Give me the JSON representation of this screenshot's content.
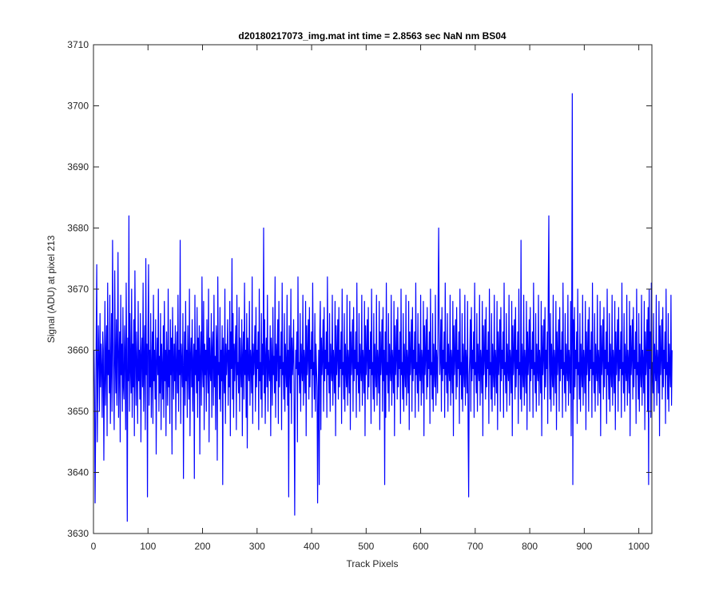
{
  "chart_data": {
    "type": "line",
    "title": "d20180217073_img.mat int time = 2.8563 sec  NaN nm BS04",
    "xlabel": "Track Pixels",
    "ylabel": "Signal (ADU) at pixel 213",
    "xlim": [
      0,
      1024
    ],
    "ylim": [
      3630,
      3710
    ],
    "xticks": [
      "0",
      "100",
      "200",
      "300",
      "400",
      "500",
      "600",
      "700",
      "800",
      "900",
      "1000"
    ],
    "yticks": [
      "3630",
      "3640",
      "3650",
      "3660",
      "3670",
      "3680",
      "3690",
      "3700",
      "3710"
    ],
    "grid": false,
    "line_color": "#0000ff",
    "series": [
      {
        "x_start": 1,
        "x_step": 1,
        "values": [
          3660,
          3652,
          3635,
          3648,
          3662,
          3674,
          3645,
          3655,
          3664,
          3658,
          3650,
          3666,
          3654,
          3661,
          3657,
          3649,
          3663,
          3660,
          3642,
          3655,
          3668,
          3651,
          3659,
          3664,
          3646,
          3671,
          3656,
          3660,
          3653,
          3669,
          3648,
          3657,
          3666,
          3650,
          3678,
          3662,
          3655,
          3647,
          3673,
          3659,
          3653,
          3665,
          3651,
          3660,
          3676,
          3649,
          3658,
          3663,
          3645,
          3669,
          3656,
          3661,
          3650,
          3667,
          3654,
          3652,
          3664,
          3659,
          3647,
          3671,
          3658,
          3632,
          3662,
          3655,
          3682,
          3650,
          3666,
          3657,
          3653,
          3670,
          3649,
          3661,
          3654,
          3665,
          3646,
          3673,
          3659,
          3651,
          3663,
          3657,
          3648,
          3668,
          3655,
          3660,
          3652,
          3666,
          3645,
          3659,
          3662,
          3654,
          3671,
          3650,
          3658,
          3664,
          3647,
          3675,
          3656,
          3661,
          3636,
          3663,
          3674,
          3651,
          3660,
          3654,
          3666,
          3649,
          3657,
          3663,
          3648,
          3669,
          3655,
          3660,
          3652,
          3665,
          3643,
          3658,
          3662,
          3656,
          3670,
          3650,
          3659,
          3653,
          3666,
          3647,
          3661,
          3657,
          3652,
          3664,
          3649,
          3668,
          3655,
          3660,
          3646,
          3663,
          3657,
          3651,
          3670,
          3654,
          3660,
          3648,
          3665,
          3656,
          3662,
          3643,
          3667,
          3659,
          3652,
          3661,
          3655,
          3664,
          3647,
          3658,
          3663,
          3653,
          3669,
          3650,
          3660,
          3656,
          3678,
          3648,
          3661,
          3658,
          3654,
          3666,
          3639,
          3657,
          3663,
          3651,
          3668,
          3655,
          3660,
          3649,
          3664,
          3657,
          3652,
          3670,
          3646,
          3659,
          3662,
          3654,
          3665,
          3650,
          3658,
          3661,
          3639,
          3669,
          3656,
          3660,
          3653,
          3667,
          3649,
          3662,
          3655,
          3664,
          3643,
          3659,
          3663,
          3651,
          3672,
          3657,
          3654,
          3668,
          3647,
          3661,
          3656,
          3660,
          3650,
          3665,
          3658,
          3653,
          3670,
          3645,
          3662,
          3657,
          3655,
          3666,
          3649,
          3660,
          3663,
          3651,
          3669,
          3654,
          3659,
          3647,
          3664,
          3661,
          3642,
          3672,
          3656,
          3658,
          3652,
          3667,
          3650,
          3660,
          3655,
          3664,
          3638,
          3662,
          3657,
          3653,
          3670,
          3648,
          3661,
          3656,
          3659,
          3665,
          3651,
          3660,
          3654,
          3668,
          3646,
          3663,
          3657,
          3675,
          3652,
          3666,
          3649,
          3661,
          3655,
          3660,
          3664,
          3647,
          3669,
          3656,
          3658,
          3653,
          3667,
          3650,
          3662,
          3657,
          3654,
          3665,
          3646,
          3659,
          3663,
          3652,
          3671,
          3656,
          3660,
          3649,
          3666,
          3644,
          3662,
          3657,
          3655,
          3668,
          3651,
          3660,
          3658,
          3653,
          3672,
          3648,
          3661,
          3656,
          3659,
          3664,
          3650,
          3667,
          3654,
          3660,
          3657,
          3663,
          3647,
          3670,
          3655,
          3658,
          3652,
          3666,
          3649,
          3661,
          3656,
          3680,
          3653,
          3665,
          3648,
          3659,
          3662,
          3654,
          3669,
          3650,
          3660,
          3657,
          3655,
          3664,
          3646,
          3662,
          3658,
          3651,
          3667,
          3656,
          3659,
          3653,
          3672,
          3649,
          3661,
          3655,
          3660,
          3665,
          3648,
          3668,
          3654,
          3659,
          3657,
          3663,
          3647,
          3671,
          3656,
          3658,
          3652,
          3666,
          3650,
          3661,
          3657,
          3654,
          3669,
          3651,
          3660,
          3636,
          3664,
          3658,
          3653,
          3670,
          3648,
          3662,
          3656,
          3659,
          3665,
          3650,
          3667,
          3655,
          3660,
          3657,
          3663,
          3645,
          3672,
          3656,
          3658,
          3653,
          3666,
          3650,
          3661,
          3657,
          3655,
          3669,
          3651,
          3660,
          3658,
          3653,
          3668,
          3646,
          3664,
          3656,
          3659,
          3665,
          3652,
          3667,
          3654,
          3660,
          3657,
          3663,
          3649,
          3671,
          3656,
          3658,
          3652,
          3666,
          3650,
          3661,
          3657,
          3654,
          3670,
          3651,
          3660,
          3638,
          3663,
          3668,
          3647,
          3662,
          3656,
          3659,
          3665,
          3650,
          3667,
          3655,
          3660,
          3657,
          3663,
          3649,
          3672,
          3656,
          3658,
          3653,
          3666,
          3650,
          3661,
          3657,
          3655,
          3669,
          3651,
          3660,
          3658,
          3653,
          3668,
          3646,
          3664,
          3656,
          3659,
          3665,
          3652,
          3667,
          3654,
          3660,
          3657,
          3663,
          3648,
          3670,
          3656,
          3658,
          3652,
          3666,
          3650,
          3661,
          3657,
          3654,
          3669,
          3651,
          3660,
          3658,
          3653,
          3668,
          3647,
          3663,
          3656,
          3659,
          3665,
          3650,
          3667,
          3655,
          3660,
          3657,
          3663,
          3649,
          3671,
          3656,
          3658,
          3653,
          3666,
          3650,
          3661,
          3657,
          3655,
          3669,
          3651,
          3660,
          3658,
          3653,
          3668,
          3646,
          3664,
          3656,
          3659,
          3665,
          3652,
          3667,
          3654,
          3660,
          3657,
          3663,
          3648,
          3670,
          3656,
          3658,
          3652,
          3666,
          3650,
          3661,
          3657,
          3654,
          3669,
          3651,
          3660,
          3658,
          3653,
          3668,
          3647,
          3663,
          3656,
          3659,
          3665,
          3650,
          3667,
          3655,
          3660,
          3657,
          3663,
          3649,
          3671,
          3656,
          3658,
          3653,
          3666,
          3650,
          3661,
          3657,
          3655,
          3669,
          3651,
          3660,
          3658,
          3653,
          3668,
          3646,
          3664,
          3656,
          3659,
          3665,
          3652,
          3667,
          3654,
          3660,
          3657,
          3663,
          3648,
          3670,
          3656,
          3658,
          3652,
          3666,
          3650,
          3661,
          3657,
          3654,
          3669,
          3651,
          3660,
          3658,
          3653,
          3668,
          3647,
          3663,
          3656,
          3659,
          3665,
          3650,
          3667,
          3655,
          3660,
          3657,
          3663,
          3649,
          3671,
          3656,
          3658,
          3653,
          3666,
          3650,
          3661,
          3657,
          3655,
          3669,
          3651,
          3660,
          3658,
          3653,
          3668,
          3646,
          3664,
          3656,
          3659,
          3665,
          3652,
          3667,
          3654,
          3660,
          3657,
          3663,
          3648,
          3670,
          3656,
          3658,
          3652,
          3666,
          3650,
          3661,
          3657,
          3654,
          3669,
          3651,
          3660,
          3658,
          3653,
          3668,
          3647,
          3663,
          3656,
          3659,
          3665,
          3650,
          3667,
          3655,
          3660,
          3657,
          3663,
          3649,
          3671,
          3656,
          3658,
          3653,
          3666,
          3650,
          3661,
          3657,
          3655,
          3669,
          3651,
          3660,
          3658,
          3653,
          3668,
          3646,
          3664,
          3656,
          3659,
          3665,
          3652,
          3667,
          3654,
          3660,
          3657,
          3663,
          3648,
          3670,
          3656,
          3658,
          3652,
          3666,
          3650,
          3661,
          3657,
          3654,
          3669,
          3651,
          3660,
          3658,
          3653,
          3668,
          3647,
          3663,
          3656,
          3659,
          3665,
          3650,
          3667,
          3655,
          3660,
          3657,
          3663,
          3649,
          3671,
          3656,
          3658,
          3653,
          3666,
          3650,
          3661,
          3657,
          3655,
          3669,
          3651,
          3660,
          3658,
          3653,
          3668,
          3646,
          3664,
          3656,
          3659,
          3665,
          3652,
          3667,
          3654,
          3660,
          3657,
          3663,
          3648,
          3670,
          3656,
          3658,
          3652,
          3666,
          3650,
          3661,
          3657,
          3654,
          3669,
          3651,
          3660,
          3658,
          3653,
          3668,
          3647,
          3663,
          3656,
          3659,
          3665,
          3650,
          3667,
          3655,
          3660,
          3657,
          3663,
          3649,
          3671,
          3656,
          3658,
          3653,
          3666,
          3650,
          3661,
          3657,
          3655,
          3669,
          3651,
          3660,
          3658,
          3653,
          3668,
          3646,
          3664,
          3656,
          3659,
          3665,
          3652,
          3667,
          3654,
          3660,
          3657,
          3663,
          3648,
          3670,
          3656,
          3658,
          3652,
          3666,
          3650,
          3661,
          3657,
          3654,
          3669,
          3651,
          3660,
          3658,
          3653,
          3668,
          3647,
          3663,
          3656,
          3659,
          3665,
          3650,
          3667,
          3655,
          3660,
          3657,
          3663,
          3649,
          3671,
          3656,
          3658,
          3653,
          3666,
          3650,
          3661,
          3657,
          3655,
          3669,
          3651,
          3660,
          3658,
          3653,
          3668,
          3646,
          3664,
          3656,
          3659,
          3665,
          3652,
          3667,
          3654,
          3660,
          3657,
          3663,
          3648,
          3670,
          3656,
          3658,
          3652,
          3666,
          3650,
          3661,
          3657,
          3654,
          3669,
          3651,
          3660,
          3658,
          3653,
          3668,
          3647,
          3663,
          3656,
          3659,
          3665,
          3650,
          3667,
          3655,
          3660,
          3657,
          3663,
          3649,
          3671,
          3656,
          3658,
          3653,
          3666,
          3650,
          3661,
          3657,
          3655,
          3669,
          3651,
          3660,
          3658,
          3653,
          3668,
          3646,
          3664,
          3656,
          3659,
          3665,
          3652,
          3667,
          3654,
          3660,
          3657,
          3663,
          3648,
          3670,
          3656,
          3658,
          3652,
          3666,
          3650,
          3661,
          3657,
          3654,
          3669,
          3651,
          3660,
          3658,
          3653,
          3668,
          3647,
          3663,
          3656,
          3659,
          3665,
          3650,
          3667,
          3655,
          3660,
          3657,
          3663,
          3649,
          3671,
          3656,
          3658,
          3653,
          3666,
          3650,
          3661,
          3657,
          3655,
          3669,
          3651,
          3660,
          3658,
          3653,
          3668,
          3646,
          3664,
          3656,
          3659,
          3665,
          3652,
          3667,
          3654,
          3660,
          3657,
          3663,
          3648,
          3670,
          3656,
          3658,
          3652,
          3666,
          3650,
          3661,
          3657,
          3654,
          3669,
          3651,
          3660,
          3658,
          3653,
          3668,
          3647,
          3663,
          3656,
          3659,
          3665,
          3650,
          3667,
          3655,
          3660,
          3657,
          3663,
          3649,
          3671,
          3656,
          3658,
          3653,
          3666,
          3650,
          3661,
          3657,
          3655,
          3669,
          3651,
          3660,
          3658,
          3653,
          3668,
          3646,
          3664,
          3656,
          3659,
          3665,
          3652,
          3667,
          3654,
          3660,
          3657,
          3663,
          3648,
          3670,
          3656,
          3658,
          3652,
          3666,
          3650,
          3661,
          3657,
          3654,
          3669,
          3651,
          3660,
          3658,
          3653,
          3668,
          3647,
          3663,
          3656,
          3659,
          3665,
          3650,
          3667,
          3655,
          3660,
          3657,
          3663,
          3649,
          3671,
          3656,
          3658,
          3653,
          3666,
          3650,
          3661,
          3657,
          3655,
          3669,
          3651,
          3660,
          3658,
          3653,
          3668,
          3646,
          3664,
          3656,
          3659,
          3665,
          3652,
          3667,
          3654,
          3660,
          3657,
          3663,
          3648,
          3670,
          3656,
          3658,
          3652,
          3666,
          3650,
          3661,
          3657,
          3654,
          3669,
          3651,
          3660
        ],
        "overrides": [
          [
            369,
            3633
          ],
          [
            411,
            3635
          ],
          [
            534,
            3638
          ],
          [
            633,
            3680
          ],
          [
            688,
            3636
          ],
          [
            784,
            3678
          ],
          [
            835,
            3682
          ],
          [
            878,
            3702
          ],
          [
            879,
            3638
          ],
          [
            1018,
            3638
          ],
          [
            1019,
            3670
          ]
        ]
      }
    ]
  }
}
